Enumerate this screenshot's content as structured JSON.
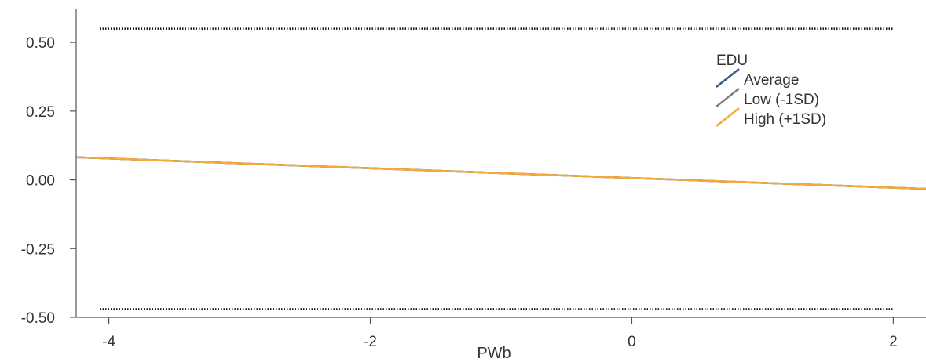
{
  "chart_data": {
    "type": "line",
    "xlabel": "PWb",
    "ylabel": "",
    "xlim": [
      -4.25,
      2.25
    ],
    "ylim": [
      -0.5,
      0.62
    ],
    "x_ticks": [
      -4,
      -2,
      0,
      2
    ],
    "x_tick_labels": [
      "-4",
      "-2",
      "0",
      "2"
    ],
    "y_ticks": [
      0.5,
      0.25,
      0.0,
      -0.25,
      -0.5
    ],
    "y_tick_labels": [
      "0.50",
      "0.25",
      "0.00",
      "-0.25",
      "-0.50"
    ],
    "grid": false,
    "legend": {
      "title": "EDU",
      "placement": "top-right",
      "entries": [
        {
          "label": "Average",
          "color": "#3a5a8c"
        },
        {
          "label": "Low (-1SD)",
          "color": "#7f7f7f"
        },
        {
          "label": "High (+1SD)",
          "color": "#f4a93b"
        }
      ]
    },
    "series": [
      {
        "name": "Average",
        "color": "#3a5a8c",
        "x": [
          -4.25,
          2.25
        ],
        "y": [
          0.082,
          -0.033
        ]
      },
      {
        "name": "Low (-1SD)",
        "color": "#7f7f7f",
        "x": [
          -4.25,
          2.25
        ],
        "y": [
          0.082,
          -0.033
        ]
      },
      {
        "name": "High (+1SD)",
        "color": "#f4a93b",
        "x": [
          -4.25,
          2.25
        ],
        "y": [
          0.082,
          -0.033
        ]
      }
    ],
    "reference_lines": [
      {
        "y": 0.55,
        "style": "dotted",
        "color": "#111111"
      },
      {
        "y": -0.47,
        "style": "dotted",
        "color": "#111111"
      }
    ]
  }
}
